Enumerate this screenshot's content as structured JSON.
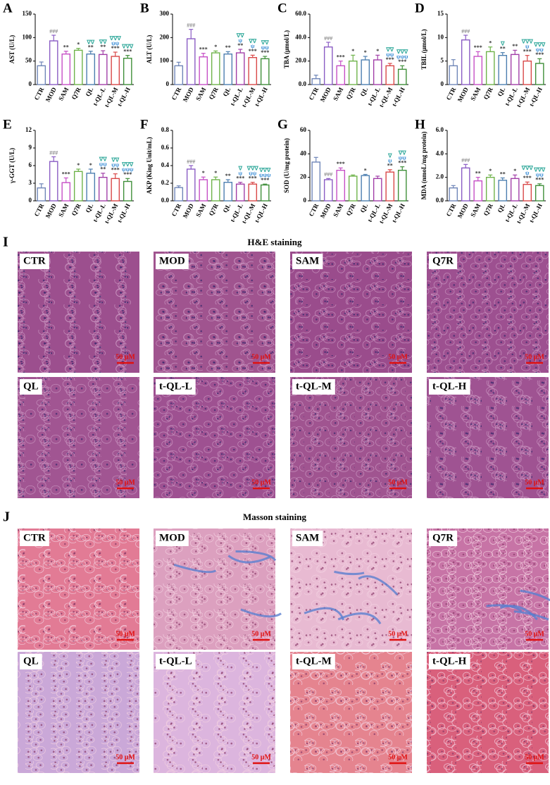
{
  "chart_data": [
    {
      "type": "bar",
      "panel": "A",
      "ylabel": "AST (U/L)",
      "categories": [
        "CTR",
        "MOD",
        "SAM",
        "Q7R",
        "QL",
        "t-QL-L",
        "t-QL-M",
        "t-QL-H"
      ],
      "values": [
        40,
        93,
        65,
        73,
        65,
        64,
        60,
        56
      ],
      "errors": [
        8,
        12,
        6,
        4,
        6,
        8,
        9,
        6
      ],
      "ylim": [
        0,
        150
      ],
      "yticks": [
        0,
        50,
        100,
        150
      ],
      "sig": [
        [],
        [
          "###"
        ],
        [
          "**"
        ],
        [
          "*"
        ],
        [
          "∇∇",
          "**"
        ],
        [
          "∇∇",
          "**"
        ],
        [
          "∇∇∇",
          "ψψ",
          "***"
        ],
        [
          "∇∇∇",
          "***"
        ]
      ],
      "colors": [
        "#6f86b8",
        "#8a5cc4",
        "#c64fc6",
        "#6fb34a",
        "#4d7fb0",
        "#a23fa8",
        "#d94848",
        "#3f8f3a"
      ],
      "annotation_colors": {
        "#": "#8a8a8a",
        "*": "#333333",
        "∇": "#2fa89a",
        "ψ": "#3d8fd6"
      }
    },
    {
      "type": "bar",
      "panel": "B",
      "ylabel": "ALT (U/L)",
      "categories": [
        "CTR",
        "MOD",
        "SAM",
        "Q7R",
        "QL",
        "t-QL-L",
        "t-QL-M",
        "t-QL-H"
      ],
      "values": [
        80,
        195,
        118,
        135,
        130,
        135,
        115,
        110
      ],
      "errors": [
        15,
        40,
        15,
        8,
        10,
        15,
        10,
        10
      ],
      "ylim": [
        0,
        300
      ],
      "yticks": [
        0,
        100,
        200,
        300
      ],
      "sig": [
        [],
        [
          "###"
        ],
        [
          "***"
        ],
        [
          "*"
        ],
        [
          "**"
        ],
        [
          "∇∇",
          "ψ",
          "**"
        ],
        [
          "∇∇",
          "ψ",
          "***"
        ],
        [
          "∇∇",
          "ψψ",
          "***"
        ]
      ],
      "colors": [
        "#6f86b8",
        "#8a5cc4",
        "#c64fc6",
        "#6fb34a",
        "#4d7fb0",
        "#a23fa8",
        "#d94848",
        "#3f8f3a"
      ],
      "annotation_colors": {
        "#": "#8a8a8a",
        "*": "#333333",
        "∇": "#2fa89a",
        "ψ": "#3d8fd6"
      }
    },
    {
      "type": "bar",
      "panel": "C",
      "ylabel": "TBA (μmol/L)",
      "categories": [
        "CTR",
        "MOD",
        "SAM",
        "Q7R",
        "QL",
        "t-QL-L",
        "t-QL-M",
        "t-QL-H"
      ],
      "values": [
        5,
        32,
        16,
        20,
        21,
        21,
        16,
        13
      ],
      "errors": [
        3,
        4,
        4,
        5,
        3,
        4,
        2,
        3
      ],
      "ylim": [
        0,
        60
      ],
      "yticks": [
        {
          "value": 0,
          "label": "0.0"
        },
        {
          "value": 20,
          "label": "20.0"
        },
        {
          "value": 40,
          "label": "40.0"
        },
        {
          "value": 60,
          "label": "60.0"
        }
      ],
      "sig": [
        [],
        [
          "###"
        ],
        [
          "***"
        ],
        [
          "*"
        ],
        [
          "*"
        ],
        [
          "*"
        ],
        [
          "∇∇",
          "ψψ",
          "***"
        ],
        [
          "∇∇∇",
          "ψψψ",
          "***"
        ]
      ],
      "colors": [
        "#6f86b8",
        "#8a5cc4",
        "#c64fc6",
        "#6fb34a",
        "#4d7fb0",
        "#a23fa8",
        "#d94848",
        "#3f8f3a"
      ],
      "annotation_colors": {
        "#": "#8a8a8a",
        "*": "#333333",
        "∇": "#2fa89a",
        "ψ": "#3d8fd6"
      }
    },
    {
      "type": "bar",
      "panel": "D",
      "ylabel": "TBIL (μmol/L)",
      "categories": [
        "CTR",
        "MOD",
        "SAM",
        "Q7R",
        "QL",
        "t-QL-L",
        "t-QL-M",
        "t-QL-H"
      ],
      "values": [
        4,
        9.5,
        6,
        7,
        6.2,
        6.4,
        5,
        4.5
      ],
      "errors": [
        1.3,
        1,
        1,
        1,
        0.6,
        0.9,
        1.2,
        1
      ],
      "ylim": [
        0,
        15
      ],
      "yticks": [
        0,
        5,
        10,
        15
      ],
      "sig": [
        [],
        [
          "###"
        ],
        [
          "***"
        ],
        [
          "*"
        ],
        [
          "∇",
          "**"
        ],
        [
          "**"
        ],
        [
          "∇∇∇",
          "ψ",
          "***"
        ],
        [
          "∇∇∇",
          "ψψ",
          "***"
        ]
      ],
      "colors": [
        "#6f86b8",
        "#8a5cc4",
        "#c64fc6",
        "#6fb34a",
        "#4d7fb0",
        "#a23fa8",
        "#d94848",
        "#3f8f3a"
      ],
      "annotation_colors": {
        "#": "#8a8a8a",
        "*": "#333333",
        "∇": "#2fa89a",
        "ψ": "#3d8fd6"
      }
    },
    {
      "type": "bar",
      "panel": "E",
      "ylabel": "γ-GGT (U/L)",
      "categories": [
        "CTR",
        "MOD",
        "SAM",
        "Q7R",
        "QL",
        "t-QL-L",
        "t-QL-M",
        "t-QL-H"
      ],
      "values": [
        2.2,
        6.7,
        3.1,
        5,
        4.7,
        4,
        3.8,
        3.3
      ],
      "errors": [
        0.7,
        0.8,
        0.8,
        0.4,
        0.7,
        0.7,
        0.8,
        0.5
      ],
      "ylim": [
        0,
        12
      ],
      "yticks": [
        0,
        3,
        6,
        9,
        12
      ],
      "sig": [
        [],
        [
          "###"
        ],
        [
          "***"
        ],
        [
          "*"
        ],
        [
          "*"
        ],
        [
          "∇∇",
          "ψψ",
          "**"
        ],
        [
          "∇∇",
          "ψψ",
          "***"
        ],
        [
          "∇∇∇",
          "ψψψ",
          "***"
        ]
      ],
      "colors": [
        "#6f86b8",
        "#8a5cc4",
        "#c64fc6",
        "#6fb34a",
        "#4d7fb0",
        "#a23fa8",
        "#d94848",
        "#3f8f3a"
      ],
      "annotation_colors": {
        "#": "#8a8a8a",
        "*": "#333333",
        "∇": "#2fa89a",
        "ψ": "#3d8fd6"
      }
    },
    {
      "type": "bar",
      "panel": "F",
      "ylabel": "AKP (King Unit/mL)",
      "categories": [
        "CTR",
        "MOD",
        "SAM",
        "Q7R",
        "QL",
        "t-QL-L",
        "t-QL-M",
        "t-QL-H"
      ],
      "values": [
        0.15,
        0.36,
        0.24,
        0.24,
        0.21,
        0.19,
        0.19,
        0.18
      ],
      "errors": [
        0.02,
        0.04,
        0.03,
        0.03,
        0.03,
        0.02,
        0.02,
        0.01
      ],
      "ylim": [
        0,
        0.8
      ],
      "yticks": [
        {
          "value": 0,
          "label": "0.0"
        },
        0.2,
        0.4,
        0.6,
        0.8
      ],
      "sig": [
        [],
        [
          "###"
        ],
        [
          "*"
        ],
        [
          "*"
        ],
        [
          "**"
        ],
        [
          "∇",
          "ψ",
          "***"
        ],
        [
          "∇∇∇",
          "ψψ",
          "***"
        ],
        [
          "∇∇∇",
          "ψψψ",
          "***"
        ]
      ],
      "colors": [
        "#6f86b8",
        "#8a5cc4",
        "#c64fc6",
        "#6fb34a",
        "#4d7fb0",
        "#a23fa8",
        "#d94848",
        "#3f8f3a"
      ],
      "annotation_colors": {
        "#": "#8a8a8a",
        "*": "#333333",
        "∇": "#2fa89a",
        "ψ": "#3d8fd6"
      }
    },
    {
      "type": "bar",
      "panel": "G",
      "ylabel": "SOD (U/mg protein)",
      "categories": [
        "CTR",
        "MOD",
        "SAM",
        "Q7R",
        "QL",
        "t-QL-L",
        "t-QL-M",
        "t-QL-H"
      ],
      "values": [
        33,
        18,
        26,
        21,
        21.5,
        19,
        24.5,
        26
      ],
      "errors": [
        4,
        1,
        2,
        1,
        1,
        2,
        2,
        3
      ],
      "ylim": [
        0,
        60
      ],
      "yticks": [
        0,
        20,
        40,
        60
      ],
      "sig": [
        [],
        [
          "###"
        ],
        [
          "***"
        ],
        [],
        [
          "*"
        ],
        [],
        [
          "∇",
          "ψ",
          "**"
        ],
        [
          "∇∇",
          "ψψ",
          "***"
        ]
      ],
      "colors": [
        "#6f86b8",
        "#8a5cc4",
        "#c64fc6",
        "#6fb34a",
        "#4d7fb0",
        "#a23fa8",
        "#d94848",
        "#3f8f3a"
      ],
      "annotation_colors": {
        "#": "#8a8a8a",
        "*": "#333333",
        "∇": "#2fa89a",
        "ψ": "#3d8fd6"
      }
    },
    {
      "type": "bar",
      "panel": "H",
      "ylabel": "MDA (nmoL/mg protein)",
      "categories": [
        "CTR",
        "MOD",
        "SAM",
        "Q7R",
        "QL",
        "t-QL-L",
        "t-QL-M",
        "t-QL-H"
      ],
      "values": [
        1.1,
        2.8,
        1.7,
        2,
        1.75,
        1.9,
        1.4,
        1.3
      ],
      "errors": [
        0.2,
        0.3,
        0.3,
        0.2,
        0.2,
        0.3,
        0.2,
        0.15
      ],
      "ylim": [
        0,
        6
      ],
      "yticks": [
        {
          "value": 0,
          "label": "0.0"
        },
        {
          "value": 2,
          "label": "2.0"
        },
        {
          "value": 4,
          "label": "4.0"
        },
        {
          "value": 6,
          "label": "6.0"
        }
      ],
      "sig": [
        [],
        [
          "###"
        ],
        [
          "**"
        ],
        [
          "*"
        ],
        [
          "**"
        ],
        [
          "*"
        ],
        [
          "∇∇∇",
          "ψ",
          "***"
        ],
        [
          "∇∇∇",
          "ψψ",
          "***"
        ]
      ],
      "colors": [
        "#6f86b8",
        "#8a5cc4",
        "#c64fc6",
        "#6fb34a",
        "#4d7fb0",
        "#a23fa8",
        "#d94848",
        "#3f8f3a"
      ],
      "annotation_colors": {
        "#": "#8a8a8a",
        "*": "#333333",
        "∇": "#2fa89a",
        "ψ": "#3d8fd6"
      }
    }
  ],
  "histology": [
    {
      "letter": "I",
      "title": "H&E staining",
      "scale_bar": "50 μM",
      "panels": [
        "CTR",
        "MOD",
        "SAM",
        "Q7R",
        "QL",
        "t-QL-L",
        "t-QL-M",
        "t-QL-H"
      ]
    },
    {
      "letter": "J",
      "title": "Masson staining",
      "scale_bar": "50 μM",
      "panels": [
        "CTR",
        "MOD",
        "SAM",
        "Q7R",
        "QL",
        "t-QL-L",
        "t-QL-M",
        "t-QL-H"
      ]
    }
  ]
}
